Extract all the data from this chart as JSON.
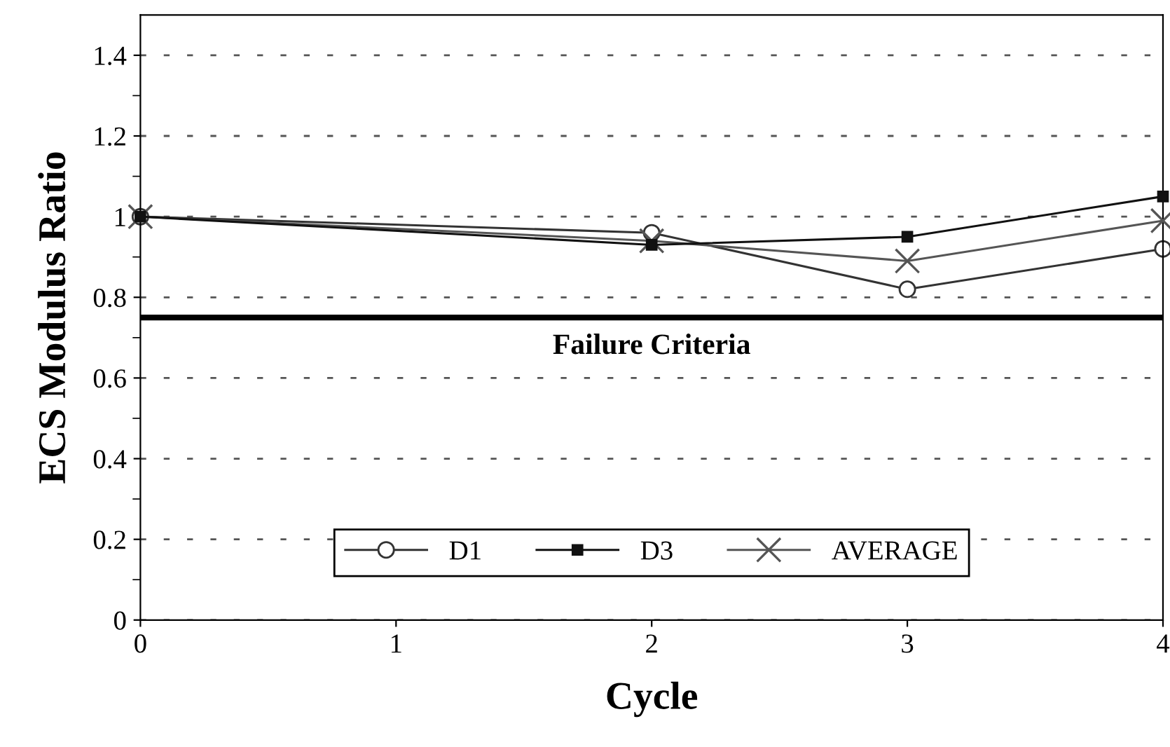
{
  "chart_data": {
    "type": "line",
    "xlabel": "Cycle",
    "ylabel": "ECS Modulus Ratio",
    "x": [
      0,
      2,
      3,
      4
    ],
    "series": [
      {
        "name": "D1",
        "color": "#333333",
        "marker": "circle",
        "values": [
          1.0,
          0.96,
          0.82,
          0.92
        ]
      },
      {
        "name": "D3",
        "color": "#111111",
        "marker": "square",
        "values": [
          1.0,
          0.93,
          0.95,
          1.05
        ]
      },
      {
        "name": "AVERAGE",
        "color": "#555555",
        "marker": "cross",
        "values": [
          1.0,
          0.94,
          0.89,
          0.99
        ]
      }
    ],
    "xlim": [
      0,
      4
    ],
    "xticks": [
      0,
      1,
      2,
      3,
      4
    ],
    "ylim": [
      0,
      1.5
    ],
    "yticks": [
      0,
      0.2,
      0.4,
      0.6,
      0.8,
      1,
      1.2,
      1.4
    ],
    "ref_lines": [
      {
        "axis": "y",
        "value": 0.75,
        "label": "Failure Criteria",
        "color": "#000000"
      }
    ],
    "grid": "y",
    "legend": "bottom",
    "line_style": "solid"
  }
}
